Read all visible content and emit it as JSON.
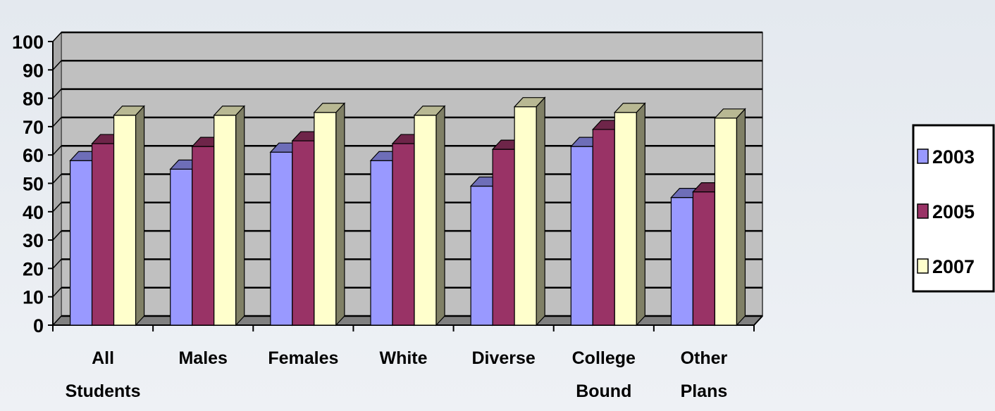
{
  "chart_data": {
    "type": "bar",
    "categories": [
      [
        "All",
        "Students"
      ],
      [
        "Males"
      ],
      [
        "Females"
      ],
      [
        "White"
      ],
      [
        "Diverse"
      ],
      [
        "College",
        "Bound"
      ],
      [
        "Other",
        "Plans"
      ]
    ],
    "series": [
      {
        "name": "2003",
        "values": [
          58,
          55,
          61,
          58,
          49,
          63,
          45
        ],
        "color": "#9999ff"
      },
      {
        "name": "2005",
        "values": [
          64,
          63,
          65,
          64,
          62,
          69,
          47
        ],
        "color": "#993366"
      },
      {
        "name": "2007",
        "values": [
          74,
          74,
          75,
          74,
          77,
          75,
          73
        ],
        "color": "#ffffcc"
      }
    ],
    "ylim": [
      0,
      100
    ],
    "yticks": [
      0,
      10,
      20,
      30,
      40,
      50,
      60,
      70,
      80,
      90,
      100
    ],
    "grid": true,
    "legend": "right",
    "plot_background": "#c0c0c0",
    "title": "",
    "xlabel": "",
    "ylabel": ""
  }
}
